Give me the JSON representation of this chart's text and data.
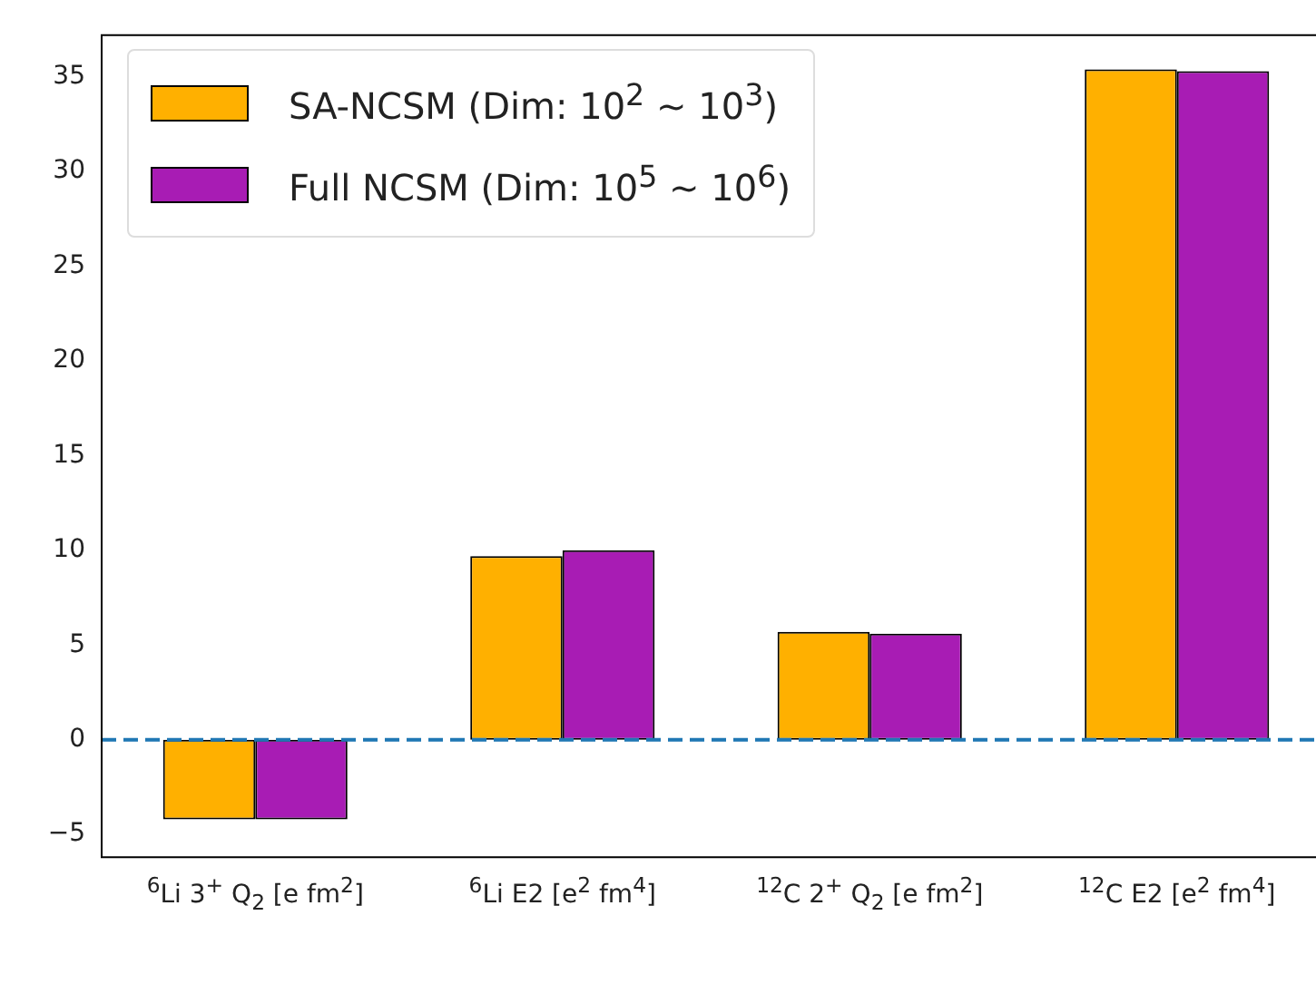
{
  "chart_data": {
    "type": "bar",
    "categories": [
      "$^{6}$Li 3$^{+}$ Q$_{2}$ [e fm$^{2}$]",
      "$^{6}$Li E2 [e$^{2}$ fm$^{4}$]",
      "$^{12}$C 2$^{+}$ Q$_{2}$ [e fm$^{2}$]",
      "$^{12}$C E2 [e$^{2}$ fm$^{4}$]"
    ],
    "series": [
      {
        "name": "SA-NCSM (Dim: 10$^{2}$ ~ 10$^{3}$)",
        "color": "#ffb000",
        "values": [
          -4.2,
          9.7,
          5.7,
          35.4
        ]
      },
      {
        "name": "Full NCSM (Dim: 10$^{5}$ ~ 10$^{6}$)",
        "color": "#a81cb4",
        "values": [
          -4.2,
          10.0,
          5.6,
          35.3
        ]
      }
    ],
    "ylim": [
      -6.2,
      37.2
    ],
    "yticks": [
      -5,
      0,
      5,
      10,
      15,
      20,
      25,
      30,
      35
    ],
    "grid": false,
    "legend": "top left",
    "ref_lines": [
      {
        "axis": "y",
        "value": 0,
        "color": "#1f77b4",
        "line_style": "dashed"
      }
    ]
  }
}
